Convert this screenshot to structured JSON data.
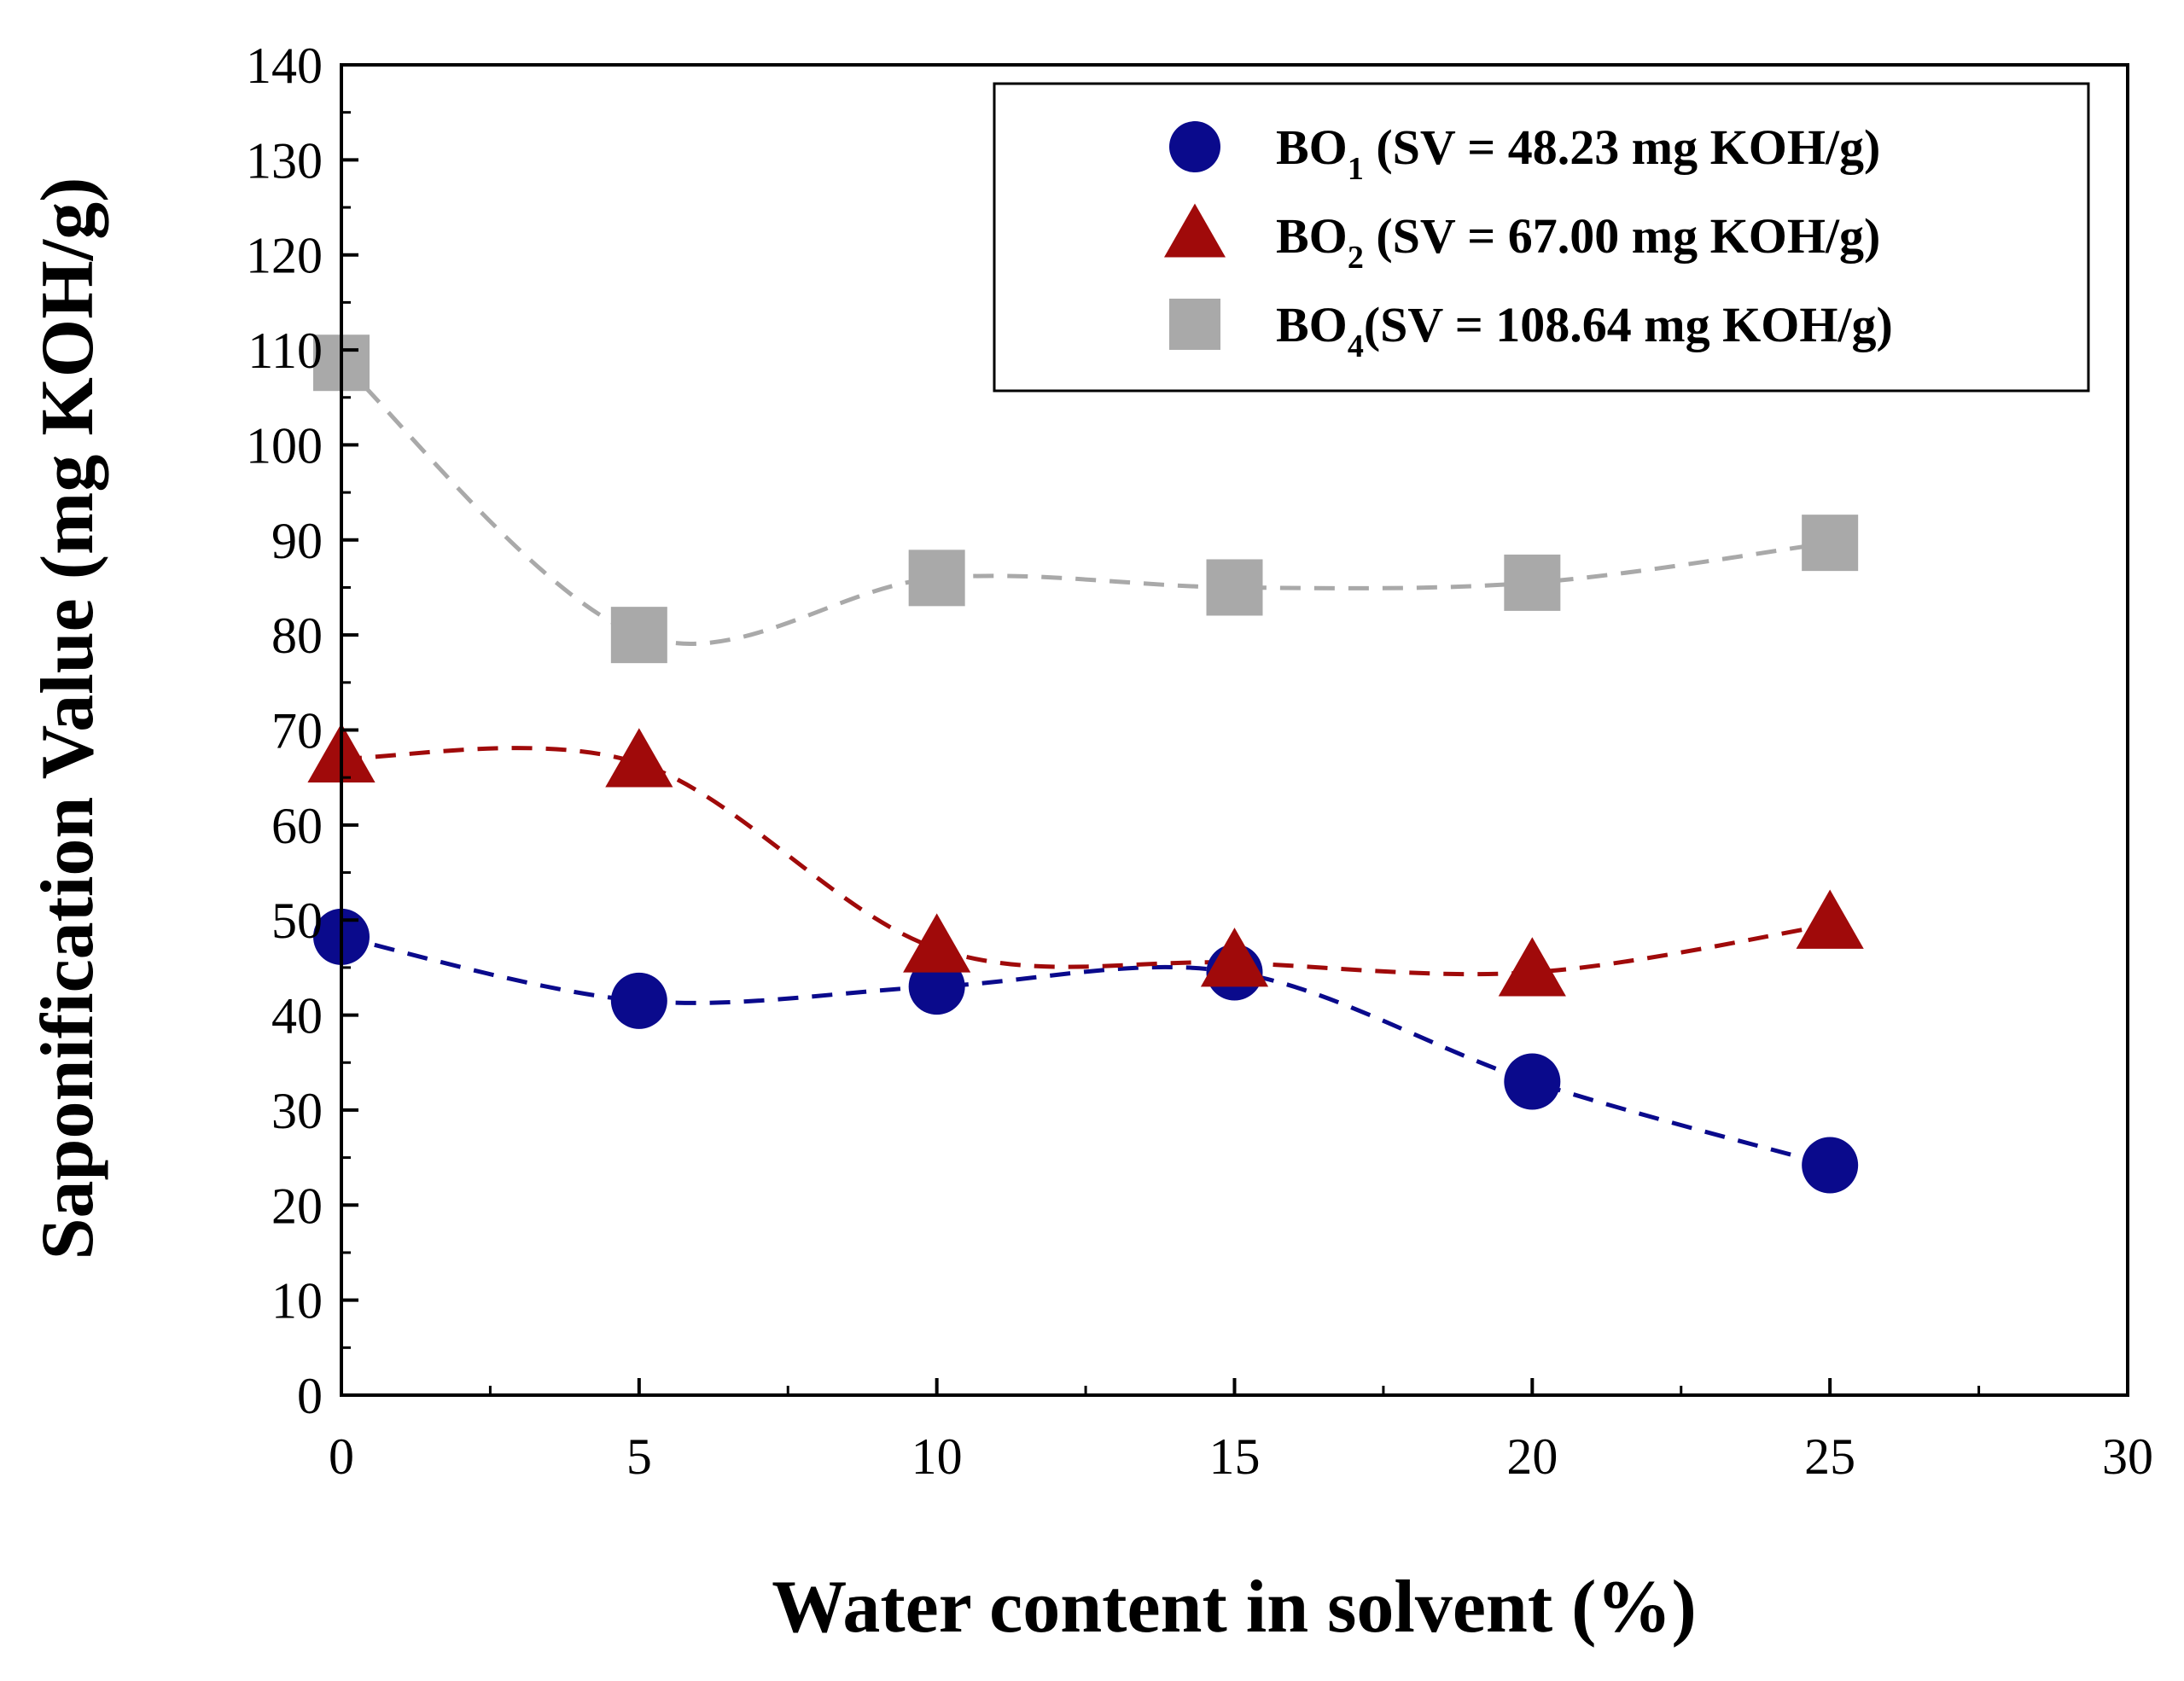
{
  "chart_data": {
    "type": "scatter",
    "xlabel": "Water content in solvent (%)",
    "ylabel": "Saponification Value (mg KOH/g)",
    "xlim": [
      0,
      30
    ],
    "ylim": [
      0,
      140
    ],
    "x_ticks": [
      0,
      5,
      10,
      15,
      20,
      25,
      30
    ],
    "y_ticks": [
      0,
      10,
      20,
      30,
      40,
      50,
      60,
      70,
      80,
      90,
      100,
      110,
      120,
      130,
      140
    ],
    "grid": false,
    "legend_position": "top-right",
    "series": [
      {
        "name": "BO1 (SV = 48.23 mg KOH/g)",
        "legend": {
          "base": "BO",
          "sub": "1",
          "rest": " (SV = 48.23 mg KOH/g)"
        },
        "marker": "circle",
        "color": "#0a0a8c",
        "x": [
          0,
          5,
          10,
          15,
          20,
          25
        ],
        "y": [
          48.23,
          41.5,
          43.0,
          44.5,
          33.0,
          24.2
        ],
        "fit_curve": "dashed"
      },
      {
        "name": "BO2 (SV = 67.00 mg KOH/g)",
        "legend": {
          "base": "BO",
          "sub": "2",
          "rest": " (SV = 67.00 mg KOH/g)"
        },
        "marker": "triangle",
        "color": "#a00a0a",
        "x": [
          0,
          5,
          10,
          15,
          20,
          25
        ],
        "y": [
          67.0,
          66.5,
          47.0,
          45.5,
          44.5,
          49.5
        ],
        "fit_curve": "dashed"
      },
      {
        "name": "BO4(SV = 108.64 mg KOH/g)",
        "legend": {
          "base": "BO",
          "sub": "4",
          "rest": "(SV = 108.64 mg KOH/g)"
        },
        "marker": "square",
        "color": "#a9a9a9",
        "x": [
          0,
          5,
          10,
          15,
          20,
          25
        ],
        "y": [
          108.64,
          80.0,
          86.0,
          85.0,
          85.5,
          89.7
        ],
        "fit_curve": "dashed"
      }
    ]
  }
}
